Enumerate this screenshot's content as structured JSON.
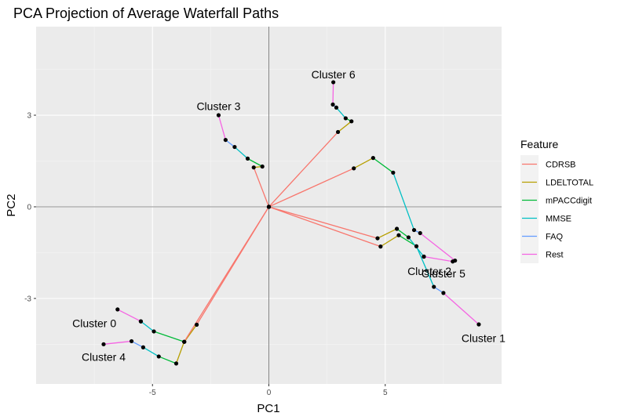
{
  "chart_data": {
    "type": "line",
    "title": "PCA Projection of Average Waterfall Paths",
    "xlabel": "PC1",
    "ylabel": "PC2",
    "xlim": [
      -10,
      10
    ],
    "ylim": [
      -5.8,
      5.9
    ],
    "x_ticks": [
      {
        "value": -5,
        "label": "-5"
      },
      {
        "value": 0,
        "label": "0"
      },
      {
        "value": 5,
        "label": "5"
      }
    ],
    "y_ticks": [
      {
        "value": -3,
        "label": "-3"
      },
      {
        "value": 0,
        "label": "0"
      },
      {
        "value": 3,
        "label": "3"
      }
    ],
    "legend": {
      "title": "Feature",
      "position": "right",
      "entries": [
        {
          "name": "CDRSB",
          "color": "#F8766D"
        },
        {
          "name": "LDELTOTAL",
          "color": "#B79F00"
        },
        {
          "name": "mPACCdigit",
          "color": "#00BA38"
        },
        {
          "name": "MMSE",
          "color": "#00BFC4"
        },
        {
          "name": "FAQ",
          "color": "#619CFF"
        },
        {
          "name": "Rest",
          "color": "#F564E3"
        }
      ]
    },
    "paths": [
      {
        "cluster": "Cluster 0",
        "label": "Cluster 0",
        "points": [
          [
            0,
            0
          ],
          [
            -3.1,
            -3.86
          ],
          [
            -3.63,
            -4.42
          ],
          [
            -4.94,
            -4.08
          ],
          [
            -5.5,
            -3.75
          ],
          [
            -5.5,
            -3.75
          ],
          [
            -6.5,
            -3.36
          ]
        ]
      },
      {
        "cluster": "Cluster 1",
        "label": "Cluster 1",
        "points": [
          [
            0,
            0
          ],
          [
            4.8,
            -1.3
          ],
          [
            5.58,
            -0.93
          ],
          [
            6.34,
            -1.29
          ],
          [
            7.09,
            -2.62
          ],
          [
            7.5,
            -2.82
          ],
          [
            9.02,
            -3.85
          ]
        ]
      },
      {
        "cluster": "Cluster 2",
        "label": "Cluster 2",
        "points": [
          [
            0,
            0
          ],
          [
            4.67,
            -1.03
          ],
          [
            5.5,
            -0.72
          ],
          [
            6.0,
            -1.0
          ],
          [
            6.66,
            -1.63
          ],
          [
            6.66,
            -1.63
          ],
          [
            7.9,
            -1.79
          ]
        ]
      },
      {
        "cluster": "Cluster 3",
        "label": "Cluster 3",
        "points": [
          [
            0,
            0
          ],
          [
            -0.65,
            1.29
          ],
          [
            -0.28,
            1.32
          ],
          [
            -0.91,
            1.58
          ],
          [
            -1.47,
            1.96
          ],
          [
            -1.86,
            2.19
          ],
          [
            -2.16,
            3.0
          ]
        ]
      },
      {
        "cluster": "Cluster 4",
        "label": "Cluster 4",
        "points": [
          [
            0,
            0
          ],
          [
            -3.64,
            -4.42
          ],
          [
            -3.98,
            -5.13
          ],
          [
            -4.73,
            -4.9
          ],
          [
            -5.4,
            -4.6
          ],
          [
            -5.9,
            -4.4
          ],
          [
            -7.1,
            -4.5
          ]
        ]
      },
      {
        "cluster": "Cluster 5",
        "label": "Cluster 5",
        "points": [
          [
            0,
            0
          ],
          [
            3.65,
            1.26
          ],
          [
            4.48,
            1.6
          ],
          [
            5.34,
            1.12
          ],
          [
            6.24,
            -0.76
          ],
          [
            6.5,
            -0.86
          ],
          [
            8.0,
            -1.76
          ]
        ]
      },
      {
        "cluster": "Cluster 6",
        "label": "Cluster 6",
        "points": [
          [
            0,
            0
          ],
          [
            2.97,
            2.45
          ],
          [
            3.55,
            2.8
          ],
          [
            3.3,
            2.9
          ],
          [
            2.9,
            3.25
          ],
          [
            2.75,
            3.35
          ],
          [
            2.77,
            4.08
          ]
        ]
      }
    ]
  }
}
